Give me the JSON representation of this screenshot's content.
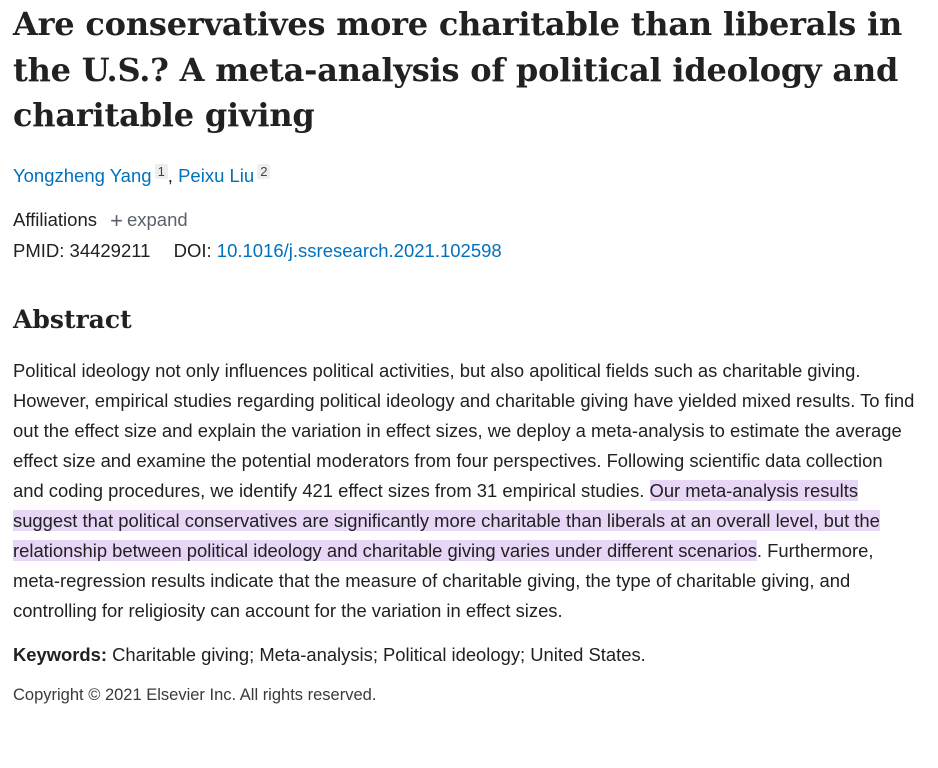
{
  "article": {
    "title": "Are conservatives more charitable than liberals in the U.S.? A meta-analysis of political ideology and charitable giving",
    "authors": [
      {
        "name": "Yongzheng Yang",
        "affiliation_ref": "1"
      },
      {
        "name": "Peixu Liu",
        "affiliation_ref": "2"
      }
    ],
    "author_separator": ",",
    "affiliations_label": "Affiliations",
    "expand_icon": "+",
    "expand_label": "expand",
    "pmid_label": "PMID:",
    "pmid": "34429211",
    "doi_label": "DOI:",
    "doi": "10.1016/j.ssresearch.2021.102598"
  },
  "abstract": {
    "heading": "Abstract",
    "text_before": "Political ideology not only influences political activities, but also apolitical fields such as charitable giving. However, empirical studies regarding political ideology and charitable giving have yielded mixed results. To find out the effect size and explain the variation in effect sizes, we deploy a meta-analysis to estimate the average effect size and examine the potential moderators from four perspectives. Following scientific data collection and coding procedures, we identify 421 effect sizes from 31 empirical studies. ",
    "text_highlighted": "Our meta-analysis results suggest that political conservatives are significantly more charitable than liberals at an overall level, but the relationship between political ideology and charitable giving varies under different scenarios",
    "text_after": ". Furthermore, meta-regression results indicate that the measure of charitable giving, the type of charitable giving, and controlling for religiosity can account for the variation in effect sizes.",
    "highlight_color": "#e8d6f7"
  },
  "keywords": {
    "label": "Keywords:",
    "value": "Charitable giving; Meta-analysis; Political ideology; United States."
  },
  "copyright": "Copyright © 2021 Elsevier Inc. All rights reserved.",
  "colors": {
    "link": "#0071bc",
    "text": "#212121"
  }
}
